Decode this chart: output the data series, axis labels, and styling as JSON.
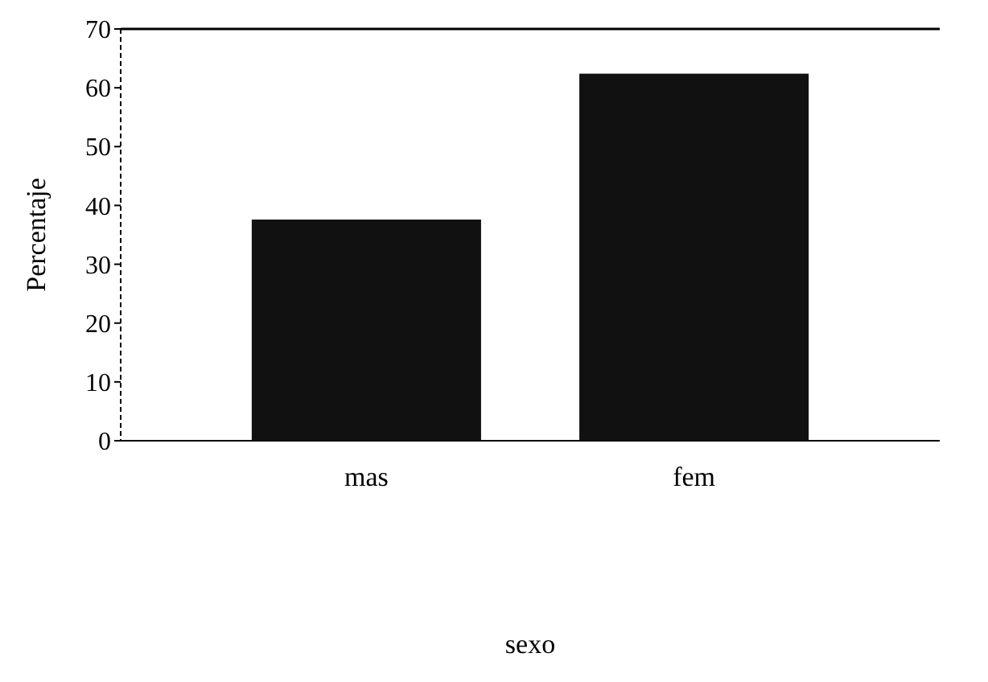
{
  "chart_data": {
    "type": "bar",
    "xlabel": "sexo",
    "ylabel": "Percentaje",
    "categories": [
      "mas",
      "fem"
    ],
    "values": [
      37.6,
      62.4
    ],
    "color": "#111111",
    "ylim": [
      0,
      70
    ],
    "yticks": [
      0,
      10,
      20,
      30,
      40,
      50,
      60,
      70
    ],
    "grid": false
  }
}
